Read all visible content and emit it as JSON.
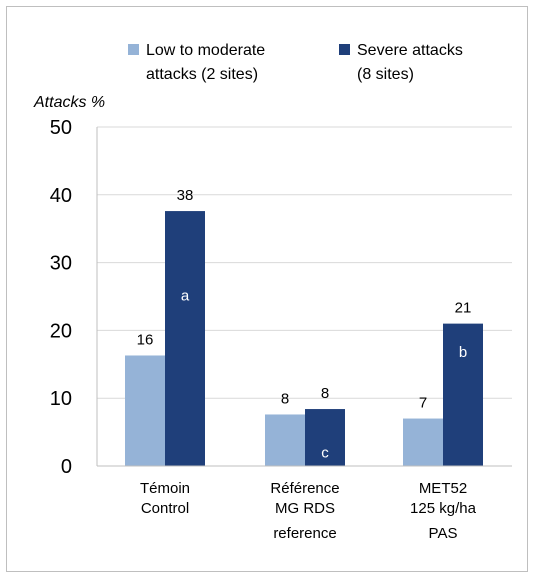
{
  "chart_data": {
    "type": "bar",
    "ylabel": "Attacks %",
    "ylim": [
      0,
      50
    ],
    "yticks": [
      0,
      10,
      20,
      30,
      40,
      50
    ],
    "grid": true,
    "legend_position": "top",
    "categories": [
      [
        "Témoin",
        "Control"
      ],
      [
        "Référence",
        "MG RDS",
        "reference"
      ],
      [
        "MET52",
        "125 kg/ha",
        "PAS"
      ]
    ],
    "series": [
      {
        "name": [
          "Low to moderate",
          "attacks (2 sites)"
        ],
        "color": "#95b3d7",
        "values": [
          16.3,
          7.6,
          7.0
        ],
        "labels": [
          "16",
          "8",
          "7"
        ],
        "letters": [
          "",
          "",
          ""
        ]
      },
      {
        "name": [
          "Severe attacks",
          "(8 sites)"
        ],
        "color": "#1f3f7a",
        "values": [
          37.6,
          8.4,
          21.0
        ],
        "labels": [
          "38",
          "8",
          "21"
        ],
        "letters": [
          "a",
          "c",
          "b"
        ]
      }
    ]
  }
}
